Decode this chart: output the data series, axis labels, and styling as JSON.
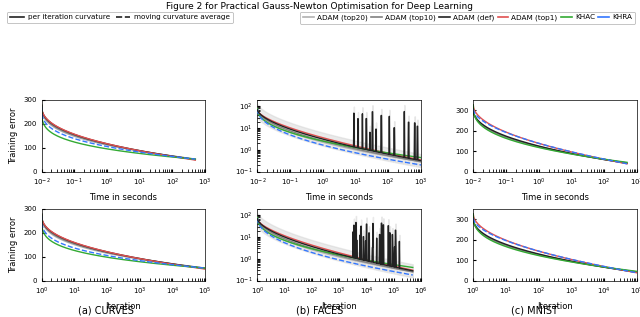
{
  "title": "Figure 2 for Practical Gauss-Newton Optimisation for Deep Learning",
  "colors": {
    "adam_top20": "#b0b0b0",
    "adam_top10": "#808080",
    "adam_def": "#222222",
    "adam_top1": "#e05050",
    "khac": "#33aa33",
    "khra_solid": "#3377ff",
    "khra_dash": "#3377ff"
  },
  "captions": [
    "(a) CURVES",
    "(b) FACES",
    "(c) MNIST"
  ]
}
